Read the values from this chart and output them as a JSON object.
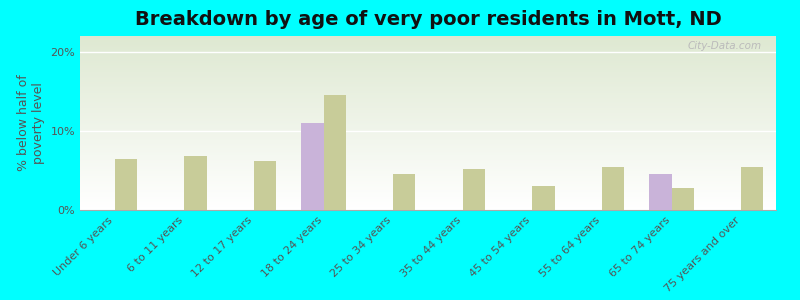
{
  "title": "Breakdown by age of very poor residents in Mott, ND",
  "ylabel": "% below half of\npoverty level",
  "categories": [
    "Under 6 years",
    "6 to 11 years",
    "12 to 17 years",
    "18 to 24 years",
    "25 to 34 years",
    "35 to 44 years",
    "45 to 54 years",
    "55 to 64 years",
    "65 to 74 years",
    "75 years and over"
  ],
  "mott_values": [
    0,
    0,
    0,
    11.0,
    0,
    0,
    0,
    0,
    4.5,
    0
  ],
  "nd_values": [
    6.5,
    6.8,
    6.2,
    14.5,
    4.5,
    5.2,
    3.0,
    5.5,
    2.8,
    5.5
  ],
  "mott_color": "#c9b3d9",
  "nd_color": "#c8cc99",
  "background_color": "#00ffff",
  "ylim": [
    0,
    22
  ],
  "yticks": [
    0,
    10,
    20
  ],
  "ytick_labels": [
    "0%",
    "10%",
    "20%"
  ],
  "title_fontsize": 14,
  "axis_label_fontsize": 9,
  "tick_label_fontsize": 8,
  "legend_fontsize": 9,
  "watermark": "City-Data.com"
}
